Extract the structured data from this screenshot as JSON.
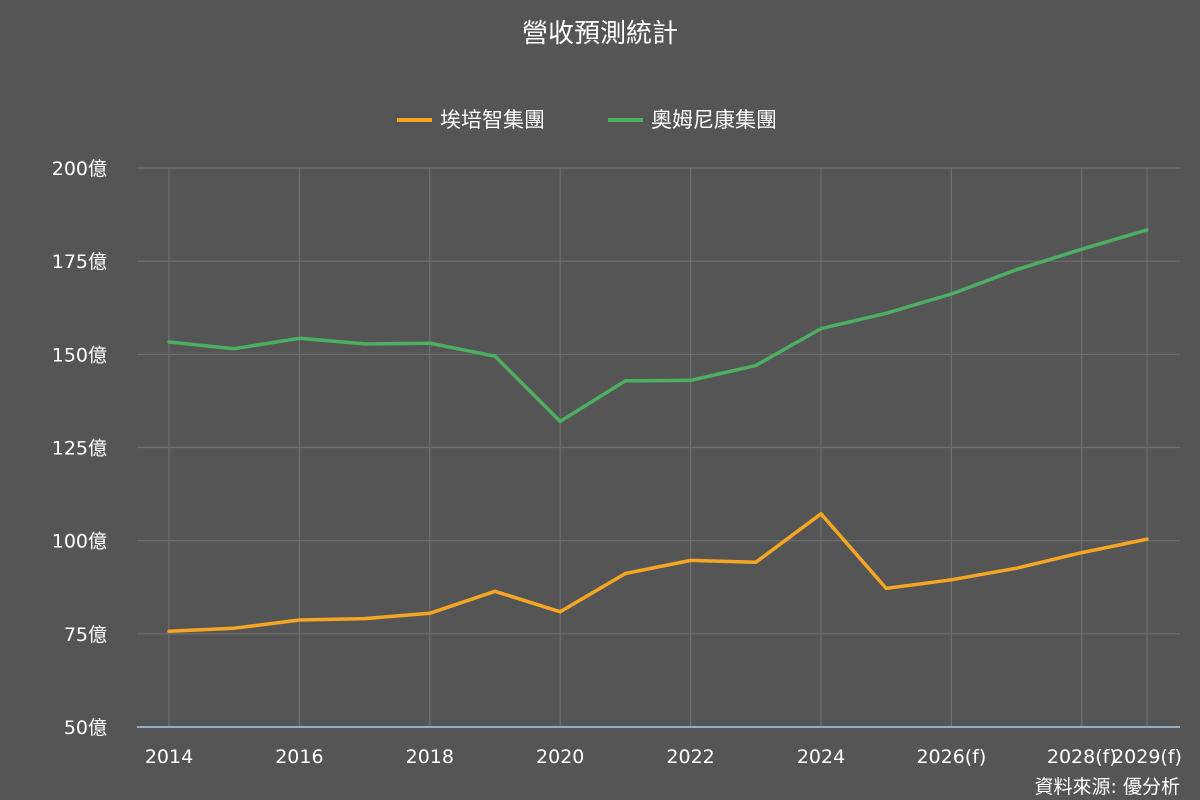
{
  "chart_data": {
    "type": "line",
    "title": "營收預測統計",
    "xlabel": "",
    "ylabel": "",
    "x": [
      "2014",
      "2015",
      "2016",
      "2017",
      "2018",
      "2019",
      "2020",
      "2021",
      "2022",
      "2023",
      "2024",
      "2025",
      "2026(f)",
      "2027(f)",
      "2028(f)",
      "2029(f)"
    ],
    "x_tick_labels": [
      "2014",
      "2016",
      "2018",
      "2020",
      "2022",
      "2024",
      "2026(f)",
      "2028(f)",
      "2029(f)"
    ],
    "y_unit_suffix": "億",
    "y_ticks": [
      50,
      75,
      100,
      125,
      150,
      175,
      200
    ],
    "ylim": [
      50,
      200
    ],
    "grid": true,
    "legend_position": "top-center",
    "series": [
      {
        "name": "埃培智集團",
        "color": "#f5a623",
        "values": [
          75.7,
          76.5,
          78.7,
          79.1,
          80.5,
          86.4,
          80.9,
          91.2,
          94.7,
          94.2,
          107.2,
          87.2,
          89.5,
          92.6,
          96.8,
          100.4
        ]
      },
      {
        "name": "奧姆尼康集團",
        "color": "#4caf61",
        "values": [
          153.3,
          151.5,
          154.3,
          152.8,
          153.0,
          149.5,
          132.0,
          142.9,
          143.0,
          147.0,
          156.9,
          161.0,
          166.2,
          172.7,
          178.2,
          183.4
        ]
      }
    ],
    "source": "資料來源: 優分析"
  }
}
